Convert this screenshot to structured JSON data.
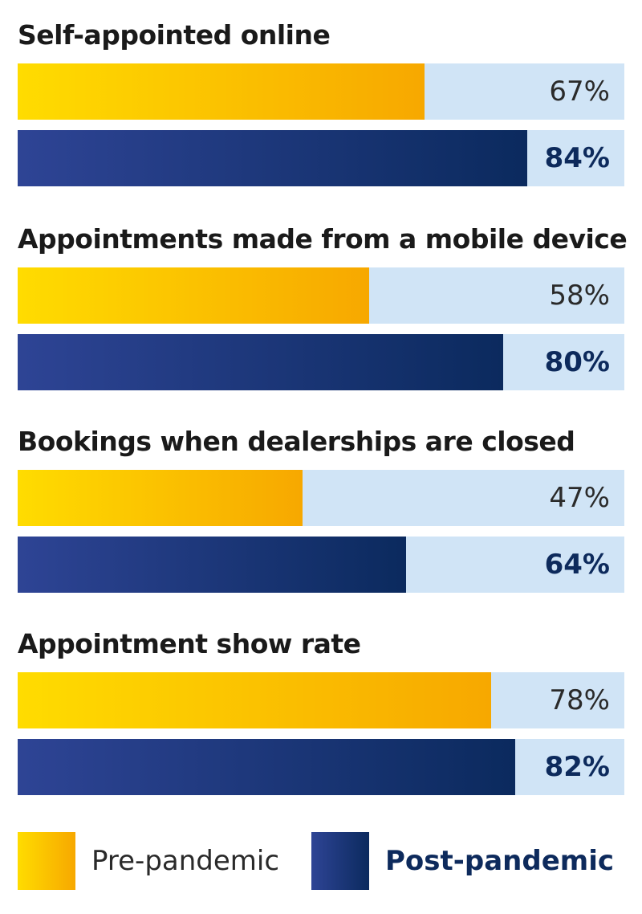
{
  "chart_data": {
    "type": "bar",
    "orientation": "horizontal",
    "categories": [
      "Self-appointed online",
      "Appointments made from a mobile device",
      "Bookings when dealerships are closed",
      "Appointment show rate"
    ],
    "series": [
      {
        "name": "Pre-pandemic",
        "values": [
          67,
          58,
          47,
          78
        ],
        "labels": [
          "67%",
          "58%",
          "47%",
          "78%"
        ],
        "color_start": "#ffdc00",
        "color_end": "#f7a800"
      },
      {
        "name": "Post-pandemic",
        "values": [
          84,
          80,
          64,
          82
        ],
        "labels": [
          "84%",
          "80%",
          "64%",
          "82%"
        ],
        "color_start": "#2e4495",
        "color_end": "#0b2a5e"
      }
    ],
    "xlim": [
      0,
      100
    ],
    "track_color": "#d0e4f6",
    "grid": false,
    "legend_position": "bottom"
  },
  "legend": {
    "pre_label": "Pre-pandemic",
    "post_label": "Post-pandemic"
  }
}
